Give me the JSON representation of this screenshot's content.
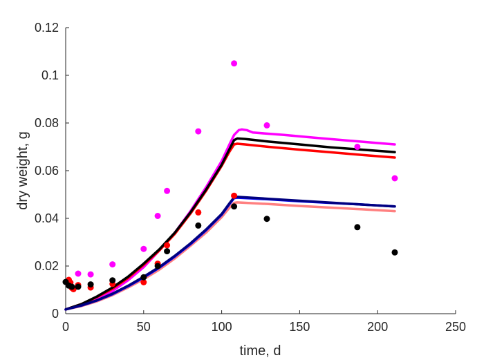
{
  "chart_data": {
    "type": "line",
    "xlabel": "time, d",
    "ylabel": "dry weight, g",
    "xlim": [
      0,
      250
    ],
    "ylim": [
      0,
      0.12
    ],
    "xticks": [
      0,
      50,
      100,
      150,
      200,
      250
    ],
    "yticks": [
      0,
      0.02,
      0.04,
      0.06,
      0.08,
      0.1,
      0.12
    ],
    "xtick_labels": [
      "0",
      "50",
      "100",
      "150",
      "200",
      "250"
    ],
    "ytick_labels": [
      "0",
      "0.02",
      "0.04",
      "0.06",
      "0.08",
      "0.1",
      "0.12"
    ],
    "grid": false,
    "legend": "none",
    "lines": [
      {
        "color": "#ff00ff",
        "x": [
          0,
          10,
          20,
          30,
          40,
          50,
          60,
          70,
          80,
          90,
          100,
          105,
          108,
          111,
          113,
          116,
          120,
          140,
          160,
          180,
          200,
          211
        ],
        "y": [
          0.0018,
          0.0035,
          0.006,
          0.0095,
          0.014,
          0.0195,
          0.0265,
          0.034,
          0.043,
          0.053,
          0.064,
          0.071,
          0.075,
          0.077,
          0.0773,
          0.077,
          0.076,
          0.075,
          0.0738,
          0.0727,
          0.0716,
          0.071
        ]
      },
      {
        "color": "#ff0000",
        "x": [
          0,
          10,
          20,
          30,
          40,
          50,
          60,
          70,
          80,
          90,
          100,
          105,
          108,
          110,
          115,
          130,
          150,
          170,
          190,
          211
        ],
        "y": [
          0.0018,
          0.004,
          0.007,
          0.0105,
          0.015,
          0.0205,
          0.0265,
          0.0335,
          0.042,
          0.0515,
          0.062,
          0.068,
          0.071,
          0.0713,
          0.071,
          0.07,
          0.0688,
          0.0677,
          0.0666,
          0.0655
        ]
      },
      {
        "color": "#000000",
        "x": [
          0,
          10,
          20,
          30,
          40,
          50,
          60,
          70,
          80,
          90,
          100,
          105,
          108,
          110,
          115,
          130,
          150,
          170,
          190,
          211
        ],
        "y": [
          0.0018,
          0.004,
          0.0072,
          0.011,
          0.0155,
          0.021,
          0.027,
          0.034,
          0.0425,
          0.052,
          0.0625,
          0.069,
          0.0728,
          0.0735,
          0.0733,
          0.0722,
          0.071,
          0.0698,
          0.0688,
          0.0678
        ]
      },
      {
        "color": "#ff8080",
        "x": [
          0,
          10,
          20,
          30,
          40,
          50,
          60,
          70,
          80,
          90,
          100,
          105,
          108,
          110,
          130,
          150,
          170,
          190,
          211
        ],
        "y": [
          0.0018,
          0.0032,
          0.0052,
          0.0078,
          0.011,
          0.0145,
          0.0185,
          0.0232,
          0.0285,
          0.034,
          0.0405,
          0.0445,
          0.0465,
          0.0467,
          0.046,
          0.0452,
          0.0445,
          0.0438,
          0.043
        ]
      },
      {
        "color": "#0000ff",
        "x": [
          0,
          10,
          20,
          30,
          40,
          50,
          60,
          70,
          80,
          90,
          100,
          105,
          108,
          110,
          130,
          150,
          170,
          190,
          211
        ],
        "y": [
          0.0018,
          0.0034,
          0.0055,
          0.0082,
          0.0115,
          0.0152,
          0.0193,
          0.024,
          0.0292,
          0.035,
          0.0415,
          0.046,
          0.0485,
          0.0487,
          0.048,
          0.0472,
          0.0465,
          0.0458,
          0.045
        ]
      },
      {
        "color": "#000080",
        "x": [
          0,
          10,
          20,
          30,
          40,
          50,
          60,
          70,
          80,
          90,
          100,
          105,
          108,
          110,
          130,
          150,
          170,
          190,
          211
        ],
        "y": [
          0.0018,
          0.0035,
          0.0056,
          0.0084,
          0.0117,
          0.0155,
          0.0196,
          0.0243,
          0.0295,
          0.0353,
          0.0418,
          0.0463,
          0.0488,
          0.049,
          0.0482,
          0.0474,
          0.0466,
          0.0458,
          0.045
        ]
      }
    ],
    "points": [
      {
        "color": "#ff00ff",
        "x": [
          1,
          3,
          8,
          16,
          30,
          50,
          59,
          65,
          85,
          108,
          129,
          187,
          211
        ],
        "y": [
          0.013,
          0.013,
          0.0168,
          0.0165,
          0.0207,
          0.0272,
          0.041,
          0.0515,
          0.0765,
          0.105,
          0.079,
          0.07,
          0.0568
        ]
      },
      {
        "color": "#ff0000",
        "x": [
          1,
          2,
          3,
          4,
          5,
          8,
          16,
          30,
          50,
          59,
          65,
          85,
          108
        ],
        "y": [
          0.013,
          0.0142,
          0.013,
          0.0108,
          0.0103,
          0.012,
          0.011,
          0.0125,
          0.0132,
          0.021,
          0.0287,
          0.0425,
          0.0495
        ]
      },
      {
        "color": "#000000",
        "x": [
          0,
          2,
          4,
          8,
          16,
          30,
          50,
          59,
          65,
          85,
          108,
          129,
          187,
          211
        ],
        "y": [
          0.0133,
          0.0118,
          0.0113,
          0.0113,
          0.0123,
          0.014,
          0.0153,
          0.02,
          0.0262,
          0.037,
          0.045,
          0.0398,
          0.0363,
          0.0257
        ]
      }
    ]
  }
}
